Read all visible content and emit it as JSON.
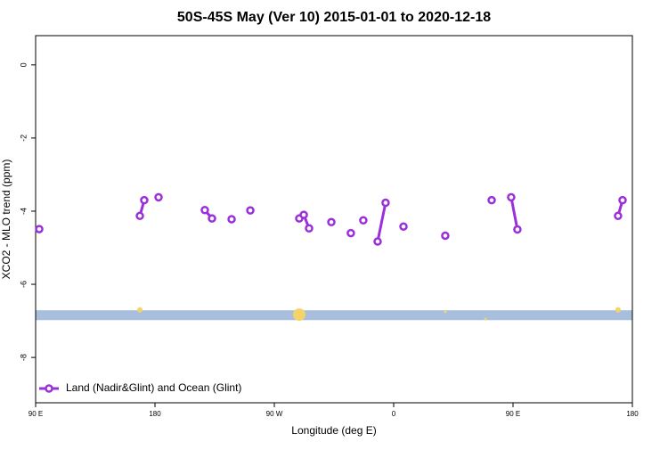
{
  "chart_data": {
    "type": "line",
    "title": "50S-45S May (Ver 10)   2015-01-01 to 2020-12-18",
    "x_label": "Longitude (deg E)",
    "y_label": "XCO2 - MLO trend (ppm)",
    "xlim": [
      90,
      540
    ],
    "ylim": [
      0.8,
      -9.24
    ],
    "xticks": [
      {
        "value": 90,
        "label": "90 E"
      },
      180,
      {
        "value": 270,
        "label": "90 W"
      },
      {
        "value": 360,
        "label": "0"
      },
      {
        "value": 450,
        "label": "90 E"
      },
      {
        "value": 540,
        "label": "180"
      }
    ],
    "yticks": [
      0,
      -2,
      -4,
      -6,
      -8
    ],
    "legend": "bottom-left",
    "band": {
      "color": "#a7bfdc",
      "values": [
        -6.98,
        -6.71
      ]
    },
    "highlights": {
      "color": "#f5d36b",
      "x": [
        168.6,
        288.8,
        398.9,
        429.2,
        529.2
      ],
      "values": [
        -6.7,
        -6.83,
        -6.75,
        -6.95,
        -6.7
      ],
      "sizes": [
        3,
        7,
        1.5,
        1.5,
        3
      ]
    },
    "series": [
      {
        "name": "Land (Nadir&Glint) and Ocean (Glint)",
        "color": "#9b30d9",
        "x": [
          92.7,
          null,
          168.6,
          171.9,
          null,
          182.7,
          null,
          217.6,
          223.0,
          null,
          237.8,
          null,
          251.9,
          null,
          288.8,
          292.2,
          296.2,
          null,
          313.0,
          null,
          327.7,
          null,
          337.1,
          null,
          347.9,
          353.9,
          null,
          367.4,
          null,
          398.9,
          null,
          433.9,
          null,
          448.6,
          453.3,
          null,
          529.2,
          532.6
        ],
        "values": [
          -4.49,
          null,
          -4.13,
          -3.7,
          null,
          -3.62,
          null,
          -3.97,
          -4.2,
          null,
          -4.22,
          null,
          -3.98,
          null,
          -4.2,
          -4.1,
          -4.47,
          null,
          -4.3,
          null,
          -4.6,
          null,
          -4.25,
          null,
          -4.83,
          -3.77,
          null,
          -4.42,
          null,
          -4.67,
          null,
          -3.7,
          null,
          -3.62,
          -4.5,
          null,
          -4.13,
          -3.7
        ]
      }
    ]
  }
}
